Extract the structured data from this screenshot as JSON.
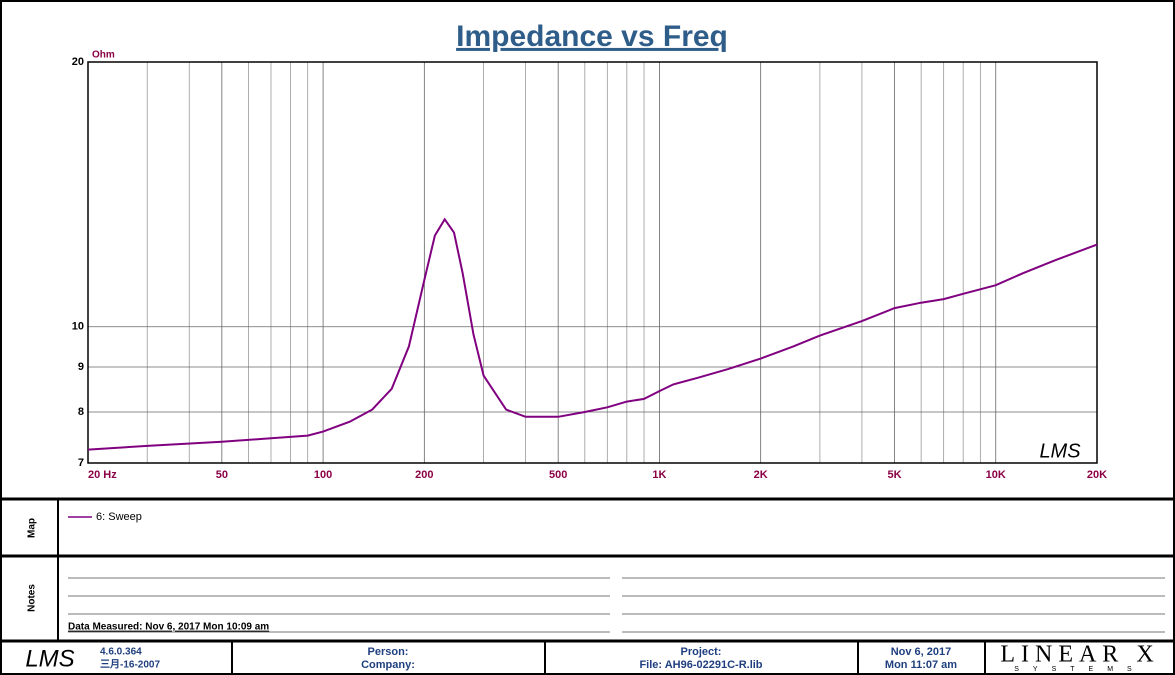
{
  "chart_data": {
    "type": "line",
    "title": "Impedance vs Freq",
    "y_unit": "Ohm",
    "watermark": "LMS",
    "x": [
      20,
      30,
      50,
      70,
      90,
      100,
      120,
      140,
      160,
      180,
      200,
      215,
      230,
      245,
      260,
      280,
      300,
      350,
      400,
      500,
      600,
      700,
      800,
      900,
      1000,
      1100,
      1300,
      1600,
      2000,
      2500,
      3000,
      4000,
      5000,
      6000,
      7000,
      8000,
      10000,
      12000,
      15000,
      20000
    ],
    "series": [
      {
        "name": "6: Sweep",
        "color": "#800080",
        "values": [
          7.25,
          7.32,
          7.4,
          7.47,
          7.52,
          7.6,
          7.8,
          8.05,
          8.5,
          9.5,
          11.3,
          12.7,
          13.25,
          12.8,
          11.5,
          9.8,
          8.8,
          8.05,
          7.9,
          7.9,
          8.0,
          8.1,
          8.22,
          8.28,
          8.45,
          8.6,
          8.75,
          8.95,
          9.2,
          9.5,
          9.77,
          10.15,
          10.5,
          10.65,
          10.75,
          10.9,
          11.15,
          11.5,
          11.9,
          12.4
        ]
      }
    ],
    "xlim": [
      20,
      20000
    ],
    "ylim": [
      7,
      20
    ],
    "log_x": true,
    "log_y": true,
    "grid": true,
    "xticks": [
      {
        "value": 20,
        "label": "20  Hz"
      },
      50,
      100,
      200,
      500,
      {
        "value": 1000,
        "label": "1K"
      },
      {
        "value": 2000,
        "label": "2K"
      },
      {
        "value": 5000,
        "label": "5K"
      },
      {
        "value": 10000,
        "label": "10K"
      },
      {
        "value": 20000,
        "label": "20K"
      }
    ],
    "x_minor_ticks": [
      30,
      40,
      60,
      70,
      80,
      90,
      300,
      400,
      600,
      700,
      800,
      900,
      3000,
      4000,
      6000,
      7000,
      8000,
      9000
    ],
    "yticks": [
      7,
      8,
      9,
      10,
      20
    ]
  },
  "panels": {
    "map_label": "Map",
    "notes_label": "Notes",
    "notes": "Data Measured: Nov 6, 2017  Mon 10:09 am"
  },
  "footer": {
    "logo": "LMS",
    "version": "4.6.0.364",
    "version_date": "三月-16-2007",
    "person": "Person:",
    "company": "Company:",
    "project": "Project:",
    "file": "File: AH96-02291C-R.lib",
    "date": "Nov 6, 2017",
    "time": "Mon 11:07 am",
    "brand": "LINEAR X",
    "brand_sub": "SYSTEMS"
  }
}
